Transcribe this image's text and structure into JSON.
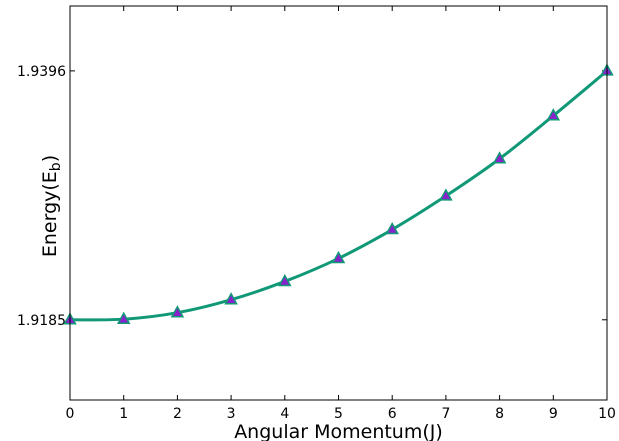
{
  "chart_data": {
    "type": "line",
    "title": "",
    "xlabel": "Angular Momentum(J)",
    "ylabel_main": "Energy(E",
    "ylabel_sub": "b",
    "ylabel_close": ")",
    "xlim": [
      0,
      10
    ],
    "ylim": [
      1.9117,
      1.9451
    ],
    "x_ticks": [
      0,
      1,
      2,
      3,
      4,
      5,
      6,
      7,
      8,
      9,
      10
    ],
    "x_tick_labels": [
      "0",
      "1",
      "2",
      "3",
      "4",
      "5",
      "6",
      "7",
      "8",
      "9",
      "10"
    ],
    "y_ticks": [
      1.9185,
      1.9396
    ],
    "y_tick_labels": [
      "1.9185",
      "1.9396"
    ],
    "grid": false,
    "series": [
      {
        "marker": "triangle",
        "line_color": "#119977",
        "marker_color": "#8822cc",
        "x": [
          0,
          1,
          2,
          3,
          4,
          5,
          6,
          7,
          8,
          9,
          10
        ],
        "y": [
          1.9185,
          1.91855,
          1.9191,
          1.9202,
          1.92175,
          1.9237,
          1.92615,
          1.929,
          1.93215,
          1.9358,
          1.9396
        ]
      }
    ]
  }
}
